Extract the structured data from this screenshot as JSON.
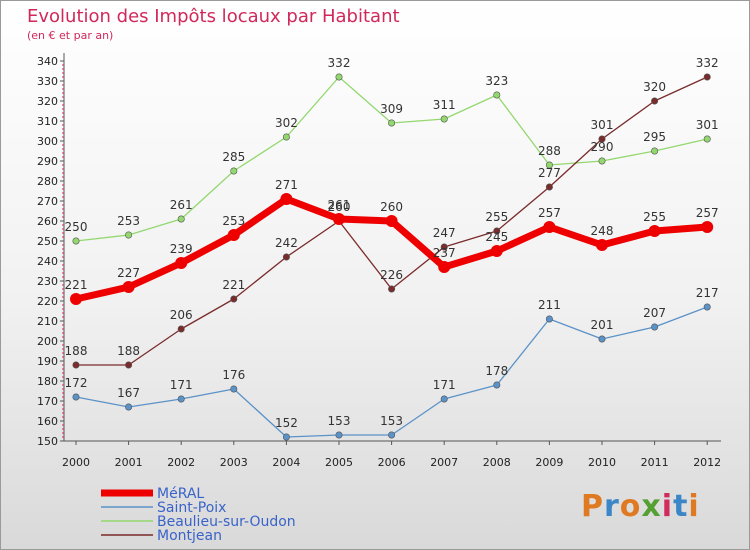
{
  "header": {
    "title": "Evolution des Impôts locaux par Habitant",
    "subtitle": "(en € et par an)"
  },
  "logo": {
    "text": "Proxiti",
    "colors": [
      "#e07a22",
      "#3b86c6",
      "#e07a22",
      "#55a033",
      "#d02b5c",
      "#3b86c6",
      "#e07a22"
    ]
  },
  "chart_data": {
    "type": "line",
    "title": "Evolution des Impôts locaux par Habitant",
    "subtitle": "(en € et par an)",
    "xlabel": "",
    "ylabel": "",
    "ylim": [
      150,
      340
    ],
    "y_ticks": [
      150,
      160,
      170,
      180,
      190,
      200,
      210,
      220,
      230,
      240,
      250,
      260,
      270,
      280,
      290,
      300,
      310,
      320,
      330,
      340
    ],
    "grid": false,
    "legend_position": "bottom-left",
    "x": [
      "2000",
      "2001",
      "2002",
      "2003",
      "2004",
      "2005",
      "2006",
      "2007",
      "2008",
      "2009",
      "2010",
      "2011",
      "2012"
    ],
    "series": [
      {
        "name": "Saint-Poix",
        "color": "#5b92c8",
        "label_color": "#3a63c9",
        "values": [
          172,
          167,
          171,
          176,
          152,
          153,
          153,
          171,
          178,
          211,
          201,
          207,
          217
        ]
      },
      {
        "name": "Beaulieu-sur-Oudon",
        "color": "#93d86f",
        "label_color": "#3a63c9",
        "values": [
          250,
          253,
          261,
          285,
          302,
          332,
          309,
          311,
          323,
          288,
          290,
          295,
          301
        ]
      },
      {
        "name": "Montjean",
        "color": "#7a2b2b",
        "label_color": "#3a63c9",
        "values": [
          188,
          188,
          206,
          221,
          242,
          260,
          226,
          247,
          255,
          277,
          301,
          320,
          332
        ]
      },
      {
        "name": "MéRAL",
        "color": "#ee0000",
        "label_color": "#3a63c9",
        "bold": true,
        "values": [
          221,
          227,
          239,
          253,
          271,
          261,
          260,
          237,
          245,
          257,
          248,
          255,
          257
        ]
      }
    ],
    "legend_order": [
      "MéRAL",
      "Saint-Poix",
      "Beaulieu-sur-Oudon",
      "Montjean"
    ]
  }
}
